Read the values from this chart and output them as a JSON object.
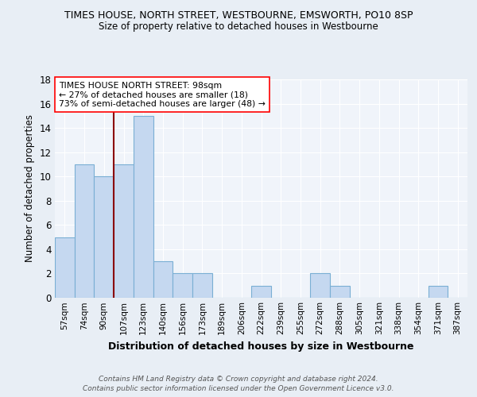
{
  "title1": "TIMES HOUSE, NORTH STREET, WESTBOURNE, EMSWORTH, PO10 8SP",
  "title2": "Size of property relative to detached houses in Westbourne",
  "xlabel": "Distribution of detached houses by size in Westbourne",
  "ylabel": "Number of detached properties",
  "categories": [
    "57sqm",
    "74sqm",
    "90sqm",
    "107sqm",
    "123sqm",
    "140sqm",
    "156sqm",
    "173sqm",
    "189sqm",
    "206sqm",
    "222sqm",
    "239sqm",
    "255sqm",
    "272sqm",
    "288sqm",
    "305sqm",
    "321sqm",
    "338sqm",
    "354sqm",
    "371sqm",
    "387sqm"
  ],
  "values": [
    5,
    11,
    10,
    11,
    15,
    3,
    2,
    2,
    0,
    0,
    1,
    0,
    0,
    2,
    1,
    0,
    0,
    0,
    0,
    1,
    0
  ],
  "bar_color": "#c5d8f0",
  "bar_edge_color": "#7aafd4",
  "red_line_x": 2.5,
  "ylim": [
    0,
    18
  ],
  "yticks": [
    0,
    2,
    4,
    6,
    8,
    10,
    12,
    14,
    16,
    18
  ],
  "annotation_text": "TIMES HOUSE NORTH STREET: 98sqm\n← 27% of detached houses are smaller (18)\n73% of semi-detached houses are larger (48) →",
  "footnote1": "Contains HM Land Registry data © Crown copyright and database right 2024.",
  "footnote2": "Contains public sector information licensed under the Open Government Licence v3.0.",
  "bg_color": "#e8eef5",
  "plot_bg_color": "#f0f4fa",
  "grid_color": "#ffffff"
}
